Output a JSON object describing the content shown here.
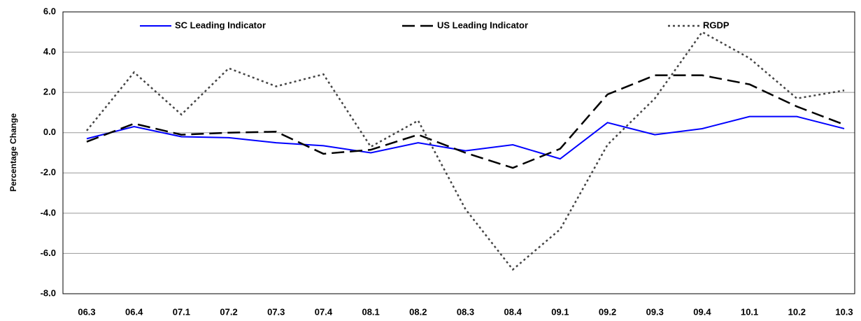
{
  "chart_data": {
    "type": "line",
    "y_label": "Percentage Change",
    "categories": [
      "06.3",
      "06.4",
      "07.1",
      "07.2",
      "07.3",
      "07.4",
      "08.1",
      "08.2",
      "08.3",
      "08.4",
      "09.1",
      "09.2",
      "09.3",
      "09.4",
      "10.1",
      "10.2",
      "10.3"
    ],
    "series": [
      {
        "name": "SC Leading Indicator",
        "color": "#0000ff",
        "dash": "none",
        "values": [
          -0.3,
          0.3,
          -0.2,
          -0.25,
          -0.5,
          -0.65,
          -1.0,
          -0.5,
          -0.9,
          -0.6,
          -1.3,
          0.5,
          -0.1,
          0.2,
          0.8,
          0.8,
          0.2
        ]
      },
      {
        "name": "US Leading Indicator",
        "color": "#000000",
        "dash": "18,8",
        "values": [
          -0.45,
          0.45,
          -0.1,
          0.0,
          0.05,
          -1.05,
          -0.85,
          -0.1,
          -1.0,
          -1.75,
          -0.8,
          1.9,
          2.85,
          2.85,
          2.4,
          1.3,
          0.4
        ]
      },
      {
        "name": "RGDP",
        "color": "#444444",
        "dash": "3,4",
        "values": [
          0.1,
          3.0,
          0.9,
          3.2,
          2.3,
          2.9,
          -0.7,
          0.6,
          -3.8,
          -6.8,
          -4.8,
          -0.6,
          1.7,
          5.0,
          3.7,
          1.7,
          2.1
        ]
      }
    ],
    "ylim": [
      -8,
      6
    ],
    "yticks": [
      {
        "value": -8,
        "label": "-8.0"
      },
      {
        "value": -6,
        "label": "-6.0"
      },
      {
        "value": -4,
        "label": "-4.0"
      },
      {
        "value": -2,
        "label": "-2.0"
      },
      {
        "value": 0,
        "label": "0.0"
      },
      {
        "value": 2,
        "label": "2.0"
      },
      {
        "value": 4,
        "label": "4.0"
      },
      {
        "value": 6,
        "label": "6.0"
      }
    ],
    "grid": true
  }
}
